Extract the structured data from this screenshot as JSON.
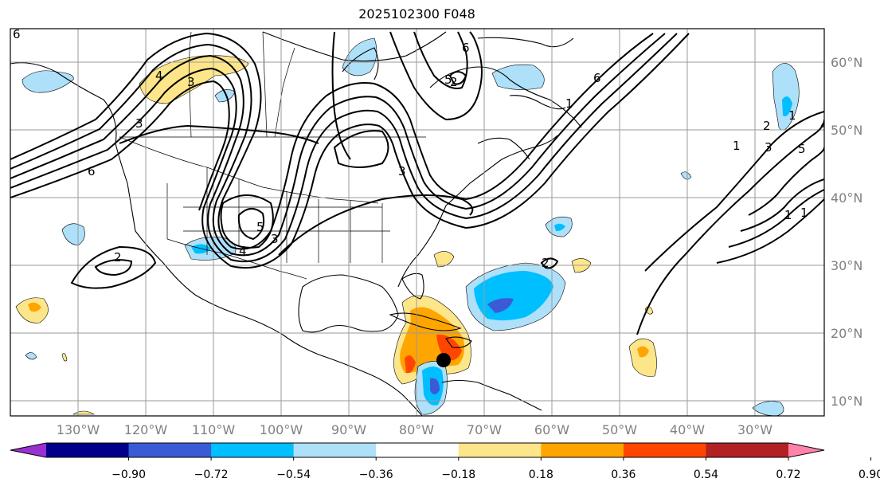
{
  "title": "2025102300 F048",
  "lat_labels": [
    "60°N",
    "50°N",
    "40°N",
    "30°N",
    "20°N",
    "10°N"
  ],
  "lon_labels": [
    "130°W",
    "120°W",
    "110°W",
    "100°W",
    "90°W",
    "80°W",
    "70°W",
    "60°W",
    "50°W",
    "40°W",
    "30°W"
  ],
  "colorbar": {
    "ticks": [
      "−0.90",
      "−0.72",
      "−0.54",
      "−0.36",
      "−0.18",
      "0.18",
      "0.36",
      "0.54",
      "0.72",
      "0.90"
    ],
    "colors": [
      "#9b30d0",
      "#00008b",
      "#3b5bd6",
      "#00bfff",
      "#aee0fa",
      "#ffffff",
      "#fde68a",
      "#ffa500",
      "#ff4500",
      "#b22222",
      "#ff82ab"
    ]
  },
  "contour_labels": [
    "6",
    "6",
    "6",
    "6",
    "4",
    "4",
    "4",
    "2",
    "2",
    "2",
    "2",
    "1",
    "1",
    "1",
    "1",
    "3",
    "3",
    "3",
    "3",
    "3",
    "5",
    "5",
    "5",
    "1"
  ],
  "marker": {
    "type": "black-dot"
  }
}
